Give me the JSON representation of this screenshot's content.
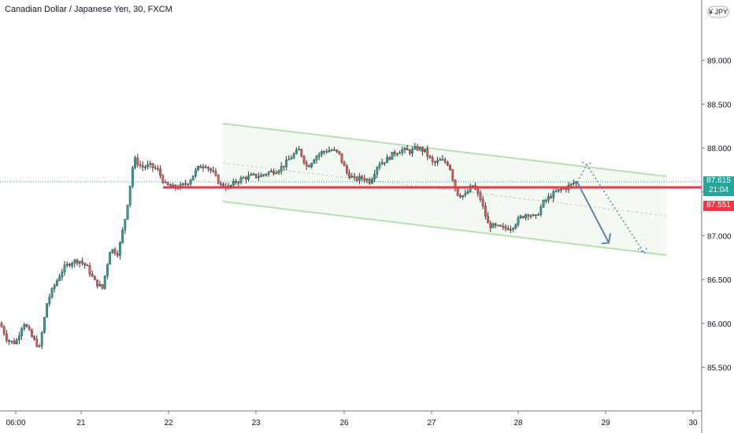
{
  "header": {
    "title": "Canadian Dollar / Japanese Yen, 30, FXCM"
  },
  "currency_badge": {
    "symbol": "¥",
    "code": "JPY"
  },
  "price_labels": {
    "last_price": "87.615",
    "countdown": "21:04",
    "marked_price": "87.551"
  },
  "colors": {
    "up": "#26a69a",
    "down": "#ef5350",
    "support_line": "#f23645",
    "channel": "#b7deb5",
    "channel_fill": "#f2faf2",
    "arrow": "#5b84a8",
    "last_price_label": "#26a69a",
    "marked_price_label": "#f23645"
  },
  "chart_data": {
    "type": "candlestick",
    "symbol": "Canadian Dollar / Japanese Yen",
    "interval": "30",
    "source": "FXCM",
    "x_ticks": [
      "06:00",
      "21",
      "22",
      "23",
      "26",
      "27",
      "28",
      "29",
      "30"
    ],
    "y_ticks": [
      "85.500",
      "86.000",
      "86.500",
      "87.000",
      "87.500",
      "88.000",
      "88.500",
      "89.000"
    ],
    "ylim": [
      85.1,
      89.6
    ],
    "grid": false,
    "close_path": [
      [
        0,
        86.0
      ],
      [
        10,
        85.8
      ],
      [
        20,
        85.78
      ],
      [
        30,
        86.02
      ],
      [
        40,
        85.85
      ],
      [
        50,
        85.72
      ],
      [
        60,
        86.25
      ],
      [
        70,
        86.45
      ],
      [
        80,
        86.62
      ],
      [
        90,
        86.7
      ],
      [
        100,
        86.72
      ],
      [
        110,
        86.65
      ],
      [
        120,
        86.48
      ],
      [
        130,
        86.4
      ],
      [
        140,
        86.85
      ],
      [
        150,
        86.8
      ],
      [
        160,
        87.25
      ],
      [
        170,
        87.88
      ],
      [
        180,
        87.78
      ],
      [
        190,
        87.8
      ],
      [
        200,
        87.75
      ],
      [
        210,
        87.58
      ],
      [
        220,
        87.55
      ],
      [
        230,
        87.56
      ],
      [
        240,
        87.62
      ],
      [
        250,
        87.76
      ],
      [
        260,
        87.82
      ],
      [
        270,
        87.72
      ],
      [
        280,
        87.58
      ],
      [
        290,
        87.55
      ],
      [
        300,
        87.62
      ],
      [
        310,
        87.66
      ],
      [
        320,
        87.68
      ],
      [
        330,
        87.68
      ],
      [
        340,
        87.72
      ],
      [
        350,
        87.74
      ],
      [
        360,
        87.8
      ],
      [
        370,
        87.9
      ],
      [
        380,
        87.98
      ],
      [
        390,
        87.78
      ],
      [
        400,
        87.9
      ],
      [
        410,
        87.96
      ],
      [
        420,
        87.98
      ],
      [
        430,
        87.94
      ],
      [
        440,
        87.72
      ],
      [
        450,
        87.64
      ],
      [
        460,
        87.66
      ],
      [
        470,
        87.62
      ],
      [
        480,
        87.82
      ],
      [
        490,
        87.86
      ],
      [
        500,
        87.94
      ],
      [
        510,
        87.98
      ],
      [
        520,
        87.96
      ],
      [
        530,
        88.0
      ],
      [
        540,
        87.96
      ],
      [
        550,
        87.82
      ],
      [
        560,
        87.86
      ],
      [
        570,
        87.82
      ],
      [
        580,
        87.48
      ],
      [
        590,
        87.45
      ],
      [
        600,
        87.58
      ],
      [
        610,
        87.42
      ],
      [
        620,
        87.12
      ],
      [
        630,
        87.1
      ],
      [
        640,
        87.08
      ],
      [
        650,
        87.1
      ],
      [
        660,
        87.2
      ],
      [
        670,
        87.26
      ],
      [
        680,
        87.2
      ],
      [
        690,
        87.38
      ],
      [
        700,
        87.46
      ],
      [
        710,
        87.52
      ],
      [
        720,
        87.55
      ],
      [
        730,
        87.61
      ]
    ],
    "horizontal_level": 87.551,
    "last_price": 87.615,
    "projection_main": [
      [
        87.61,
        "start"
      ],
      [
        86.92,
        "end"
      ]
    ],
    "projection_alt": [
      87.61,
      87.81,
      86.8
    ]
  }
}
